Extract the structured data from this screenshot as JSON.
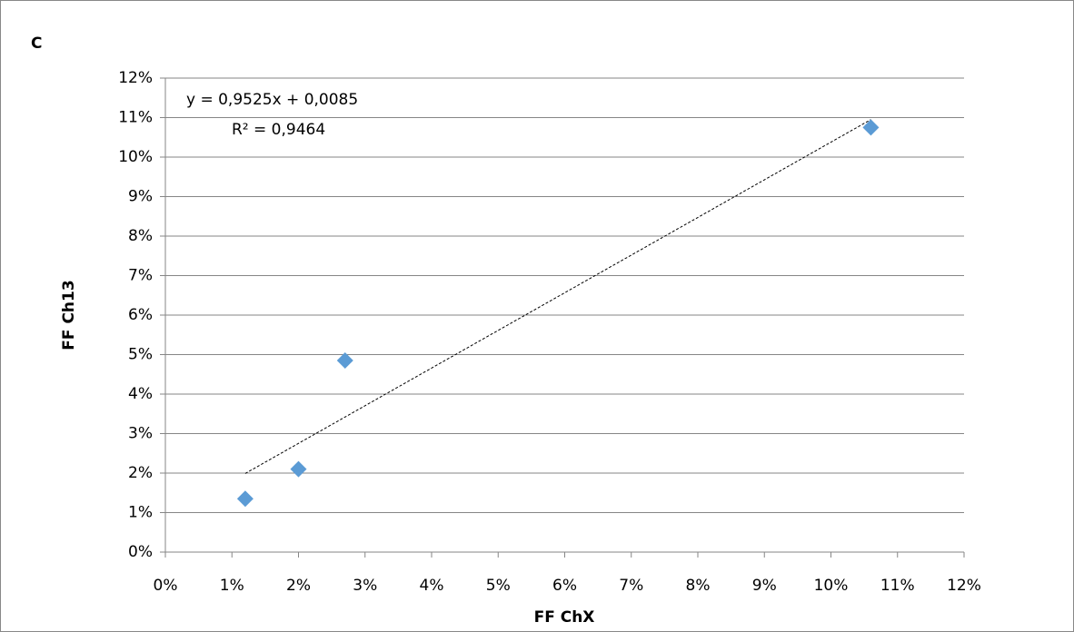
{
  "chart_data": {
    "type": "scatter",
    "title": "C",
    "xlabel": "FF ChX",
    "ylabel": "FF Ch13",
    "series": [
      {
        "color": "#5b9bd5",
        "x": [
          1.2,
          2.0,
          2.7,
          10.6
        ],
        "values": [
          1.35,
          2.1,
          4.85,
          10.75
        ]
      }
    ],
    "trendline": {
      "x": [
        1.2,
        10.6
      ],
      "values": [
        1.99,
        10.95
      ],
      "color": "#000000",
      "equation": "y = 0,9525x + 0,0085",
      "r2": "R² = 0,9464"
    },
    "xlim": [
      0,
      12
    ],
    "ylim": [
      0,
      12
    ],
    "xticks": [
      {
        "value": 0,
        "label": "0%"
      },
      {
        "value": 1,
        "label": "1%"
      },
      {
        "value": 2,
        "label": "2%"
      },
      {
        "value": 3,
        "label": "3%"
      },
      {
        "value": 4,
        "label": "4%"
      },
      {
        "value": 5,
        "label": "5%"
      },
      {
        "value": 6,
        "label": "6%"
      },
      {
        "value": 7,
        "label": "7%"
      },
      {
        "value": 8,
        "label": "8%"
      },
      {
        "value": 9,
        "label": "9%"
      },
      {
        "value": 10,
        "label": "10%"
      },
      {
        "value": 11,
        "label": "11%"
      },
      {
        "value": 12,
        "label": "12%"
      }
    ],
    "yticks": [
      {
        "value": 0,
        "label": "0%"
      },
      {
        "value": 1,
        "label": "1%"
      },
      {
        "value": 2,
        "label": "2%"
      },
      {
        "value": 3,
        "label": "3%"
      },
      {
        "value": 4,
        "label": "4%"
      },
      {
        "value": 5,
        "label": "5%"
      },
      {
        "value": 6,
        "label": "6%"
      },
      {
        "value": 7,
        "label": "7%"
      },
      {
        "value": 8,
        "label": "8%"
      },
      {
        "value": 9,
        "label": "9%"
      },
      {
        "value": 10,
        "label": "10%"
      },
      {
        "value": 11,
        "label": "11%"
      },
      {
        "value": 12,
        "label": "12%"
      }
    ],
    "grid": true
  }
}
